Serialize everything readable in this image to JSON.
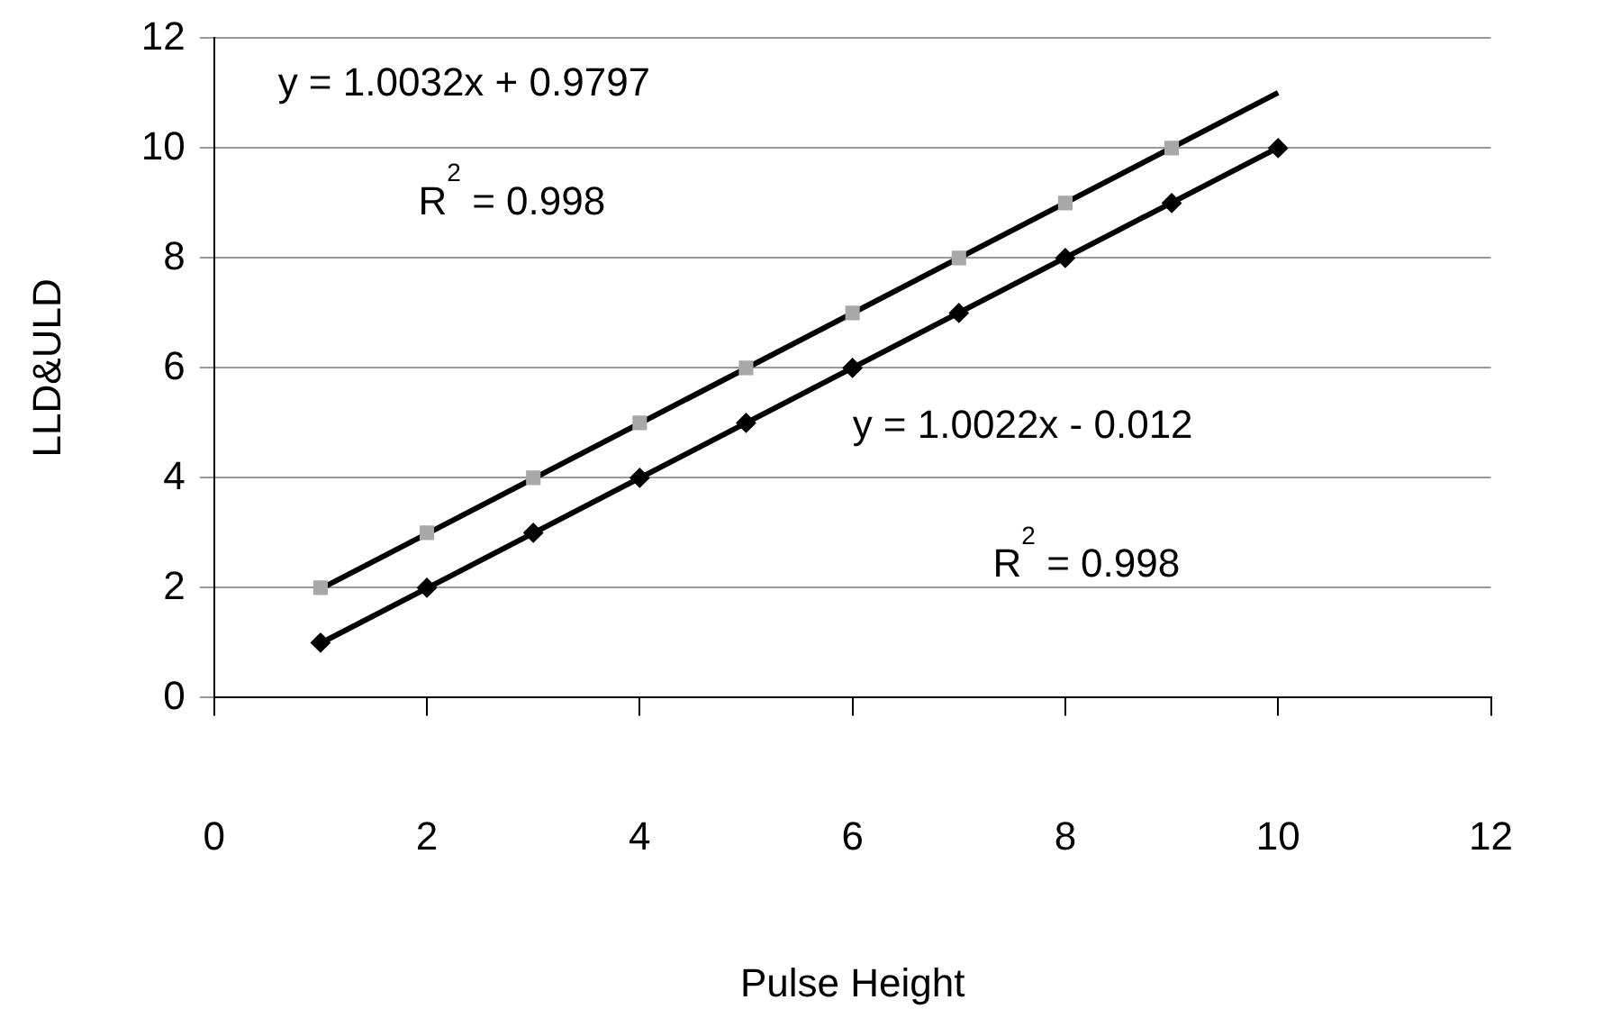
{
  "chart_data": {
    "type": "scatter",
    "xlabel": "Pulse Height",
    "ylabel": "LLD&ULD",
    "xlim": [
      0,
      12
    ],
    "xticks": [
      0,
      2,
      4,
      6,
      8,
      10,
      12
    ],
    "ylim": [
      0,
      12
    ],
    "yticks": [
      0,
      2,
      4,
      6,
      8,
      10,
      12
    ],
    "grid": "y",
    "legend": false,
    "series": [
      {
        "color": "#a8a8a8",
        "marker": "square",
        "x": [
          1,
          2,
          3,
          4,
          5,
          6,
          7,
          8,
          9
        ],
        "values": [
          2,
          3,
          4,
          5,
          6,
          7,
          8,
          9,
          10
        ]
      },
      {
        "color": "#000000",
        "marker": "diamond",
        "x": [
          1,
          2,
          3,
          4,
          5,
          6,
          7,
          8,
          9,
          10
        ],
        "values": [
          1,
          2,
          3,
          4,
          5,
          6,
          7,
          8,
          9,
          10
        ]
      },
      {
        "type": "line",
        "color": "#000000",
        "marker": "none",
        "x": [
          1,
          10
        ],
        "values": [
          1.98,
          11.01
        ]
      },
      {
        "type": "line",
        "color": "#000000",
        "marker": "none",
        "x": [
          1,
          10
        ],
        "values": [
          0.99,
          10.01
        ]
      }
    ],
    "annotations": [
      "y = 1.0032x + 0.9797",
      "R$^{2}$ = 0.998",
      "y = 1.0022x - 0.012",
      "R$^{2}$ = 0.998"
    ]
  }
}
